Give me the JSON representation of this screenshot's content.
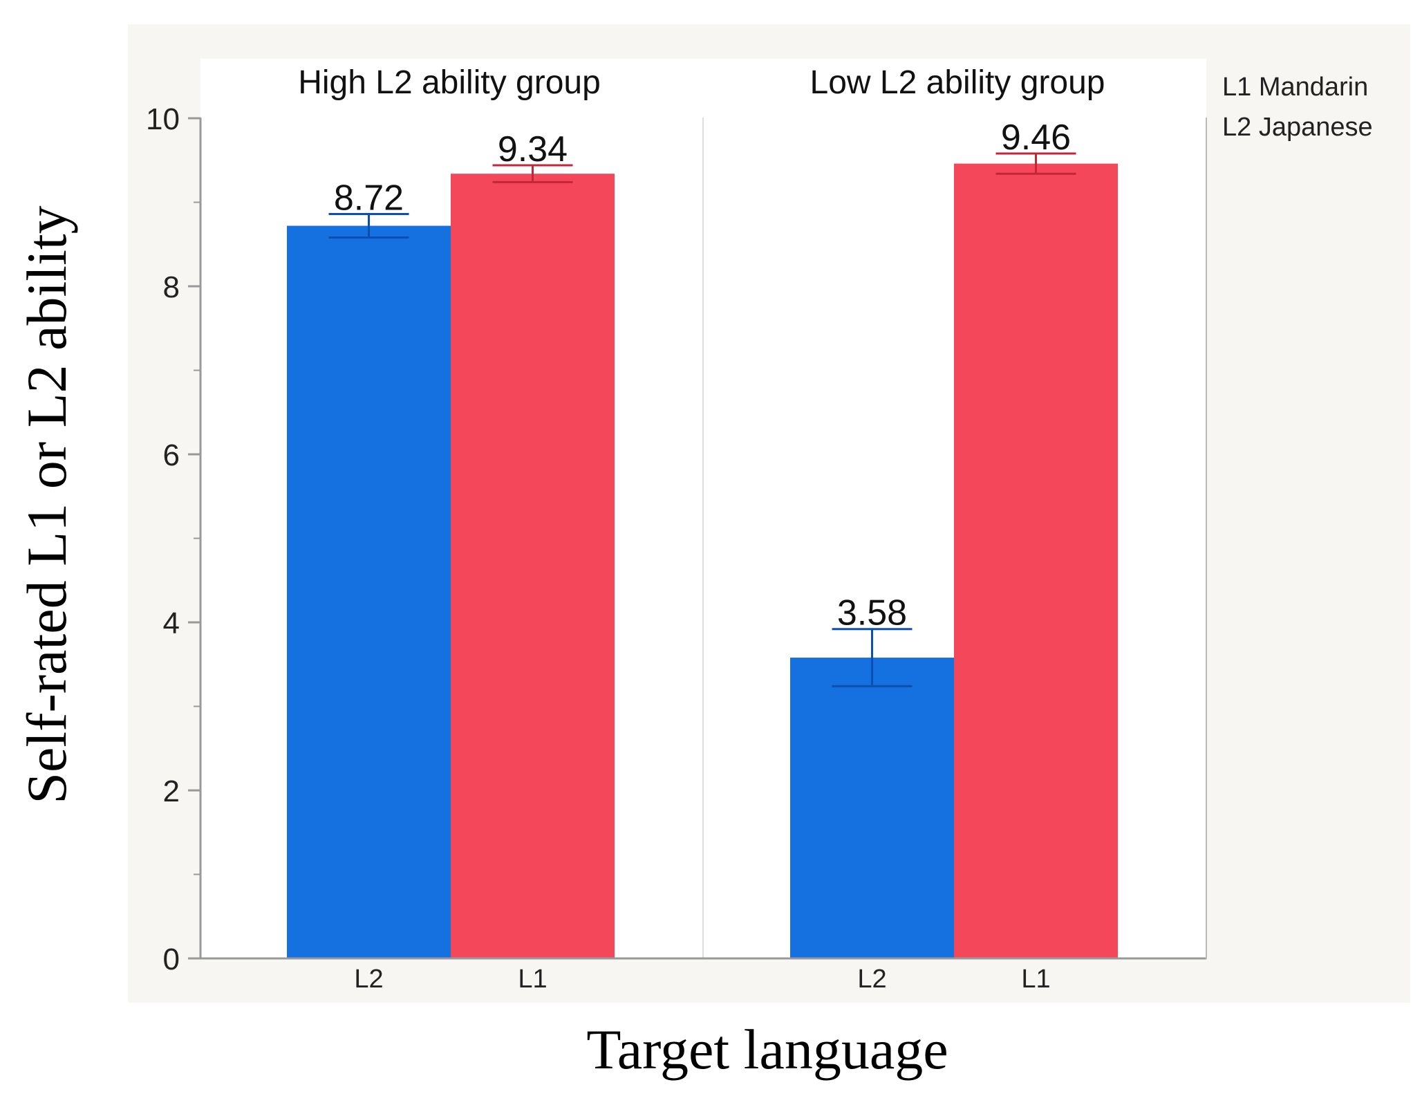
{
  "chart_data": {
    "type": "bar",
    "ylabel": "Self-rated L1 or L2 ability",
    "xlabel": "Target language",
    "ylim": [
      0,
      10
    ],
    "y_major_ticks": [
      0,
      2,
      4,
      6,
      8,
      10
    ],
    "y_minor_ticks": [
      1,
      3,
      5,
      7,
      9
    ],
    "grid": false,
    "legend": {
      "placement": "top-right",
      "entries": [
        "L1 Mandarin",
        "L2 Japanese"
      ]
    },
    "colors": {
      "L2": "#1570e0",
      "L1": "#f4475a",
      "panel_bg": "#f8f6f3"
    },
    "panels": [
      {
        "title": "High L2 ability group",
        "categories": [
          "L2",
          "L1"
        ],
        "values": [
          8.72,
          9.34
        ],
        "labels": [
          "8.72",
          "9.34"
        ],
        "error_low": [
          8.58,
          9.24
        ],
        "error_high": [
          8.86,
          9.44
        ]
      },
      {
        "title": "Low L2 ability group",
        "categories": [
          "L2",
          "L1"
        ],
        "values": [
          3.58,
          9.46
        ],
        "labels": [
          "3.58",
          "9.46"
        ],
        "error_low": [
          3.24,
          9.34
        ],
        "error_high": [
          3.92,
          9.58
        ]
      }
    ]
  }
}
